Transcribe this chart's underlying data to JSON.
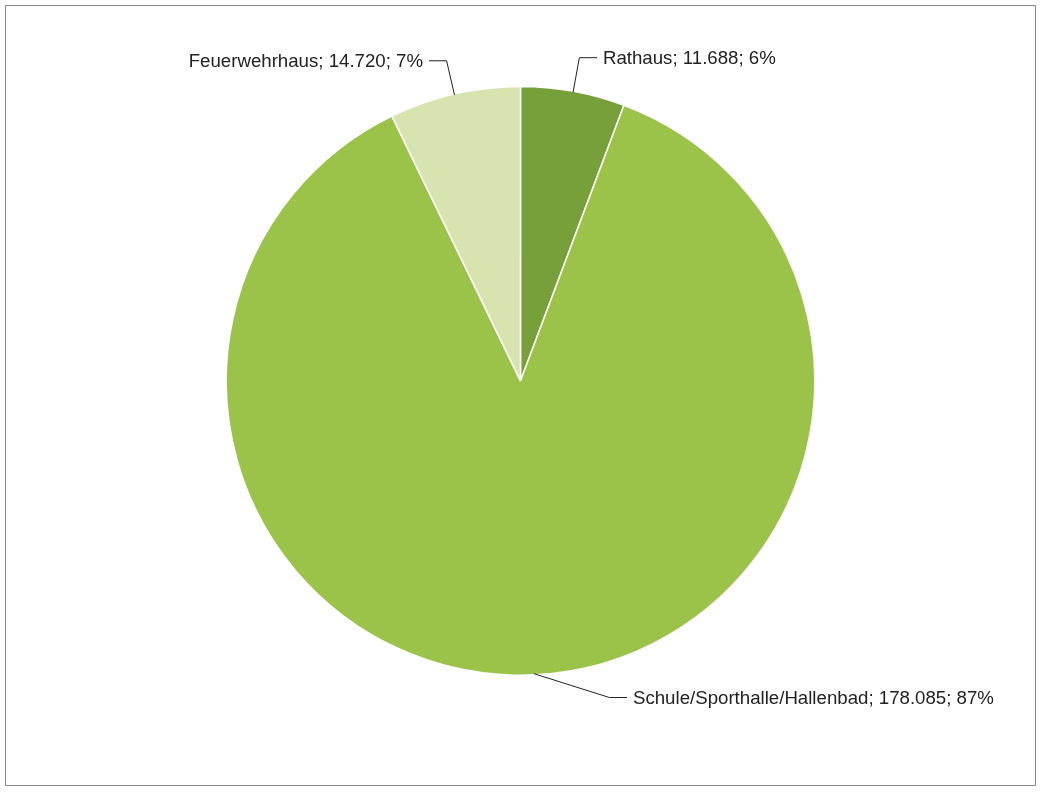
{
  "chart_data": {
    "type": "pie",
    "categories": [
      "Rathaus",
      "Schule/Sporthalle/Hallenbad",
      "Feuerwehrhaus"
    ],
    "values": [
      11688,
      178085,
      14720
    ],
    "value_labels": [
      "; 11.688; 6%",
      "; 178.085; 87%",
      "; 14.720; 7%"
    ],
    "colors": [
      "#77a03a",
      "#9bc34a",
      "#d7e4b0"
    ]
  }
}
